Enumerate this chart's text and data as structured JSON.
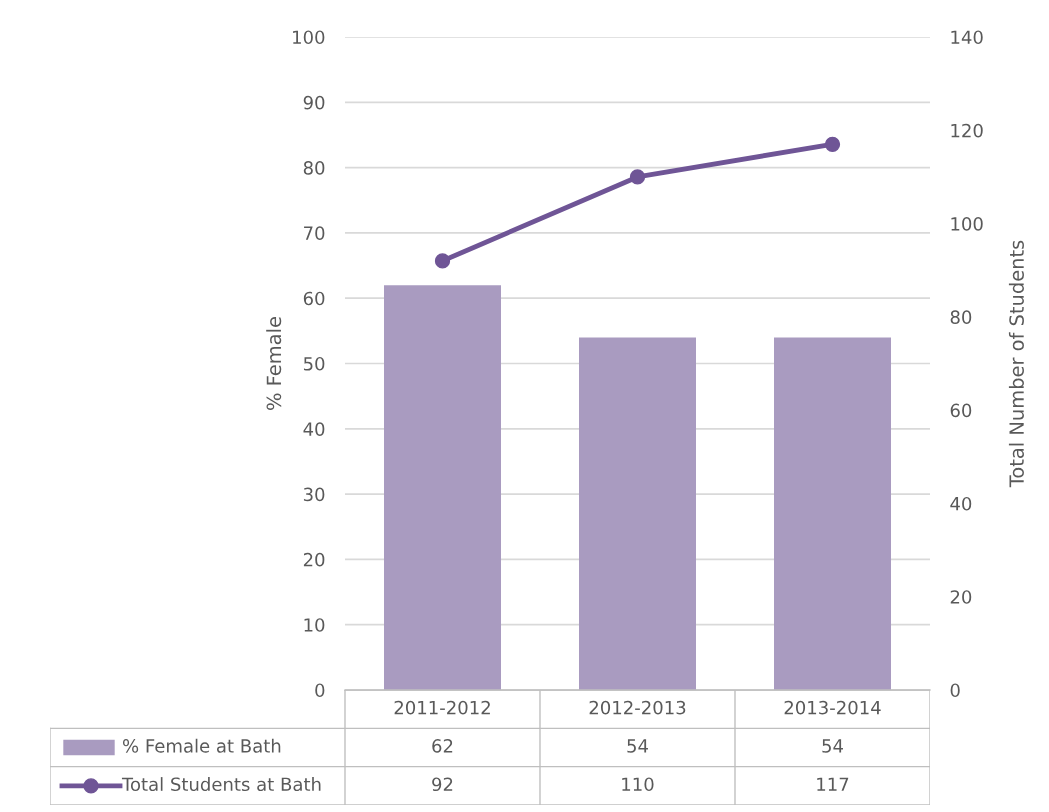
{
  "chart_data": {
    "type": "bar",
    "categories": [
      "2011-2012",
      "2012-2013",
      "2013-2014"
    ],
    "series": [
      {
        "name": "% Female at Bath",
        "color": "#a99bc0",
        "values": [
          62,
          54,
          54
        ]
      },
      {
        "name": "Total Students at Bath",
        "type": "line",
        "axis": "y2",
        "color": "#6f5596",
        "marker": "circle",
        "values": [
          92,
          110,
          117
        ]
      }
    ],
    "ylabel": "% Female",
    "y2label": "Total Number of Students",
    "ylim": [
      0,
      100
    ],
    "yticks": [
      0,
      10,
      20,
      30,
      40,
      50,
      60,
      70,
      80,
      90,
      100
    ],
    "y2lim": [
      0,
      140
    ],
    "y2ticks": [
      0,
      20,
      40,
      60,
      80,
      100,
      120,
      140
    ],
    "grid": "y",
    "legend": "bottom",
    "data_labels": true
  }
}
